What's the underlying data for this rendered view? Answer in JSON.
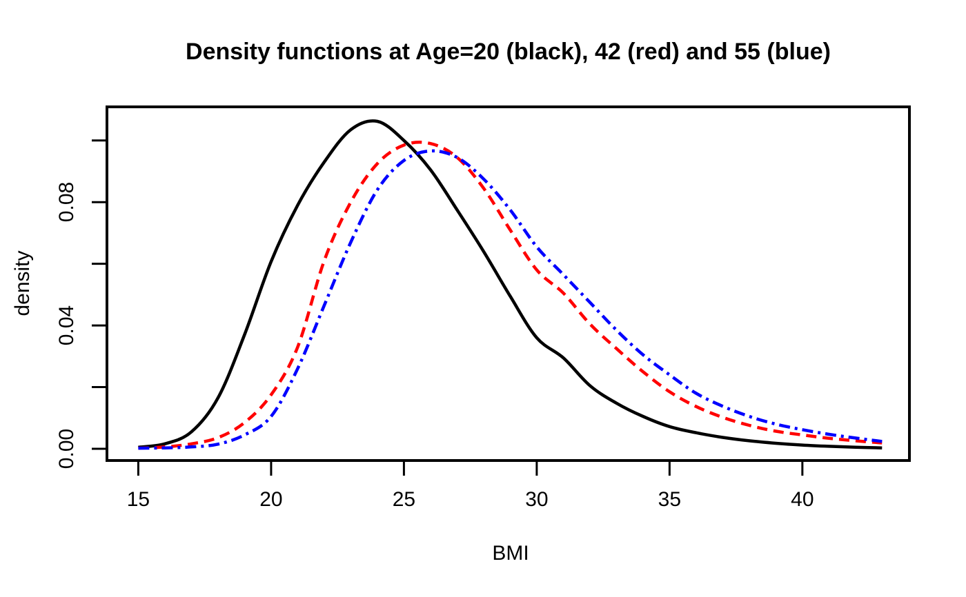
{
  "title": "Density functions at Age=20 (black), 42 (red) and 55 (blue)",
  "chart_data": {
    "type": "line",
    "title": "Density functions at Age=20 (black), 42 (red) and 55 (blue)",
    "xlabel": "BMI",
    "ylabel": "density",
    "xlim": [
      13.82,
      44.03
    ],
    "ylim": [
      -0.0038,
      0.1109
    ],
    "grid": false,
    "legend": "none (line colors identified in title)",
    "x_ticks": [
      {
        "value": 15,
        "label": "15"
      },
      {
        "value": 20,
        "label": "20"
      },
      {
        "value": 25,
        "label": "25"
      },
      {
        "value": 30,
        "label": "30"
      },
      {
        "value": 35,
        "label": "35"
      },
      {
        "value": 40,
        "label": "40"
      }
    ],
    "y_ticks": [
      {
        "value": 0.0,
        "label": "0.00"
      },
      {
        "value": 0.02,
        "label": ""
      },
      {
        "value": 0.04,
        "label": "0.04"
      },
      {
        "value": 0.06,
        "label": ""
      },
      {
        "value": 0.08,
        "label": "0.08"
      },
      {
        "value": 0.1,
        "label": ""
      }
    ],
    "x": [
      15,
      16,
      17,
      18,
      19,
      20,
      21,
      22,
      23,
      24,
      25,
      26,
      27,
      28,
      29,
      30,
      31,
      32,
      33,
      34,
      35,
      36,
      37,
      38,
      39,
      40,
      41,
      42,
      43
    ],
    "series": [
      {
        "name": "Age=20",
        "color": "#000000",
        "style": "solid",
        "peak": {
          "x": 23.7,
          "y": 0.1065
        },
        "values": [
          0.0005,
          0.0016,
          0.0055,
          0.0165,
          0.037,
          0.0607,
          0.079,
          0.093,
          0.1035,
          0.1062,
          0.1,
          0.0905,
          0.0775,
          0.064,
          0.0495,
          0.036,
          0.0295,
          0.0205,
          0.0148,
          0.0105,
          0.0072,
          0.0052,
          0.0037,
          0.0026,
          0.0018,
          0.0012,
          0.0008,
          0.0005,
          0.0003
        ]
      },
      {
        "name": "Age=42",
        "color": "#ff0000",
        "style": "dashed",
        "peak": {
          "x": 25.5,
          "y": 0.0992
        },
        "values": [
          0.0002,
          0.0006,
          0.0016,
          0.0036,
          0.0085,
          0.0175,
          0.033,
          0.061,
          0.08,
          0.0925,
          0.0985,
          0.099,
          0.0945,
          0.0845,
          0.071,
          0.058,
          0.0505,
          0.0405,
          0.0325,
          0.025,
          0.0185,
          0.0137,
          0.0102,
          0.0076,
          0.0057,
          0.0045,
          0.0034,
          0.0026,
          0.0019
        ]
      },
      {
        "name": "Age=55",
        "color": "#0000ff",
        "style": "dotdash",
        "peak": {
          "x": 26.1,
          "y": 0.0968
        },
        "values": [
          0.0002,
          0.0003,
          0.0006,
          0.0015,
          0.0045,
          0.0105,
          0.026,
          0.0465,
          0.067,
          0.084,
          0.0935,
          0.0966,
          0.0945,
          0.0875,
          0.0775,
          0.0655,
          0.0565,
          0.0475,
          0.0385,
          0.0305,
          0.024,
          0.018,
          0.0138,
          0.0105,
          0.008,
          0.0062,
          0.0047,
          0.0035,
          0.0024
        ]
      }
    ]
  }
}
